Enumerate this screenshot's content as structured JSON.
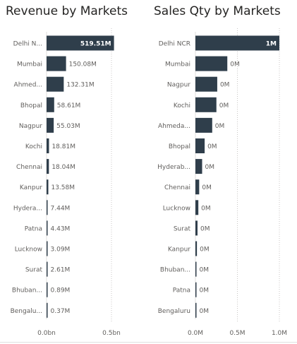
{
  "chart_data": [
    {
      "type": "bar",
      "orientation": "horizontal",
      "title": "Revenue by Markets",
      "categories": [
        "Delhi N...",
        "Mumbai",
        "Ahmed...",
        "Bhopal",
        "Nagpur",
        "Kochi",
        "Chennai",
        "Kanpur",
        "Hydera...",
        "Patna",
        "Lucknow",
        "Surat",
        "Bhuban...",
        "Bengalu..."
      ],
      "values": [
        519.51,
        150.08,
        132.31,
        58.61,
        55.03,
        18.81,
        18.04,
        13.58,
        7.44,
        4.43,
        3.09,
        2.61,
        0.89,
        0.37
      ],
      "value_unit": "M",
      "data_labels": [
        "519.51M",
        "150.08M",
        "132.31M",
        "58.61M",
        "55.03M",
        "18.81M",
        "18.04M",
        "13.58M",
        "7.44M",
        "4.43M",
        "3.09M",
        "2.61M",
        "0.89M",
        "0.37M"
      ],
      "xlim": [
        0,
        500
      ],
      "x_ticks": [
        {
          "value": 0,
          "label": "0.0bn"
        },
        {
          "value": 500,
          "label": "0.5bn"
        }
      ],
      "bar_color": "#2f3e4b",
      "gridlines": "dotted"
    },
    {
      "type": "bar",
      "orientation": "horizontal",
      "title": "Sales Qty by Markets",
      "categories": [
        "Delhi NCR",
        "Mumbai",
        "Nagpur",
        "Kochi",
        "Ahmeda...",
        "Bhopal",
        "Hyderab...",
        "Chennai",
        "Lucknow",
        "Surat",
        "Kanpur",
        "Bhuban...",
        "Patna",
        "Bengaluru"
      ],
      "values": [
        1.0,
        0.38,
        0.26,
        0.25,
        0.2,
        0.11,
        0.08,
        0.045,
        0.035,
        0.025,
        0.018,
        0.012,
        0.008,
        0.004
      ],
      "value_unit": "M",
      "data_labels": [
        "1M",
        "0M",
        "0M",
        "0M",
        "0M",
        "0M",
        "0M",
        "0M",
        "0M",
        "0M",
        "0M",
        "0M",
        "0M",
        "0M"
      ],
      "xlim": [
        0,
        1.0
      ],
      "x_ticks": [
        {
          "value": 0,
          "label": "0.0M"
        },
        {
          "value": 0.5,
          "label": "0.5M"
        },
        {
          "value": 1.0,
          "label": "1.0M"
        }
      ],
      "bar_color": "#2f3e4b",
      "gridlines": "dotted"
    }
  ]
}
